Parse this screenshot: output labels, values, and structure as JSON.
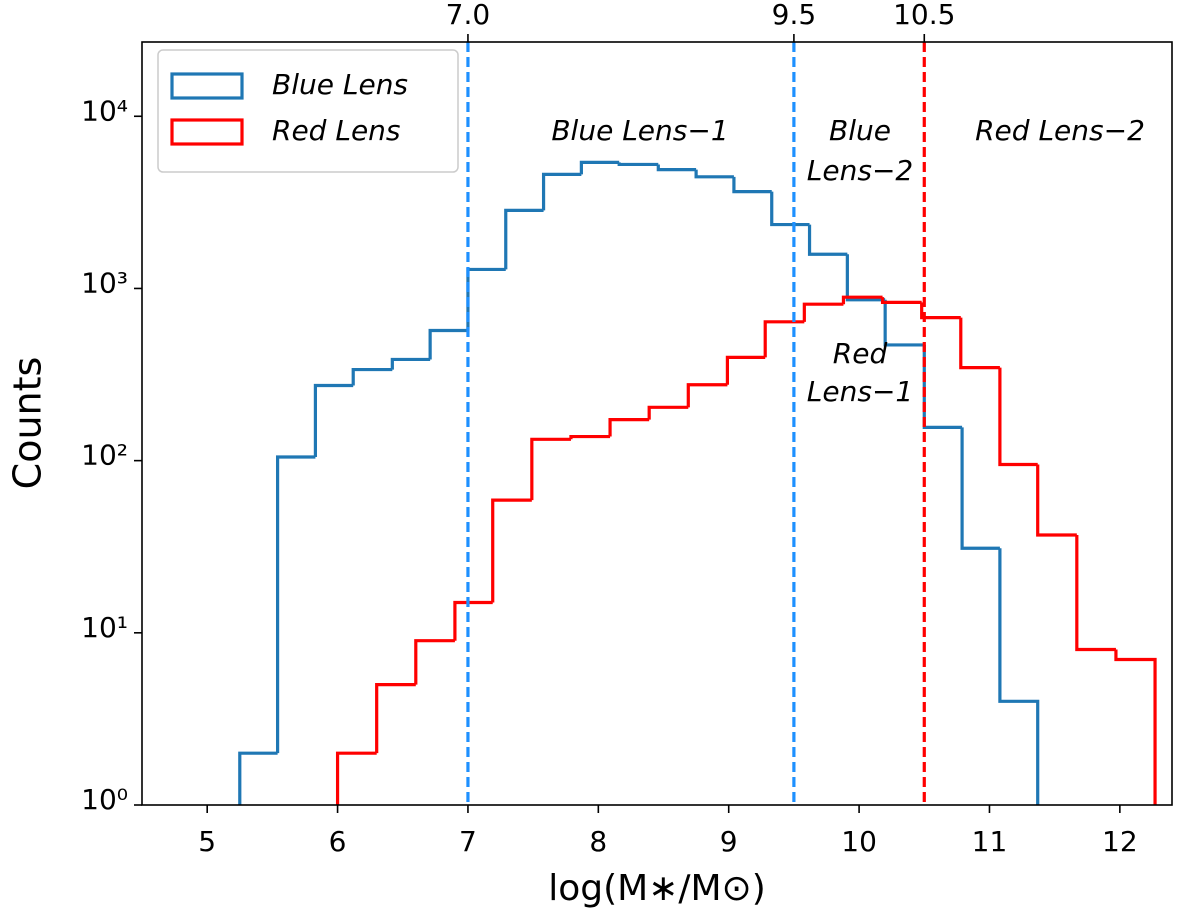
{
  "chart_data": {
    "type": "histogram",
    "xlabel": "log(M∗/M⊙)",
    "ylabel": "Counts",
    "log_y": true,
    "xlim": [
      4.5,
      12.4
    ],
    "ylim": [
      1,
      27000
    ],
    "xticks": [
      5,
      6,
      7,
      8,
      9,
      10,
      11,
      12
    ],
    "yticks": [
      {
        "value": 1,
        "label": "10⁰"
      },
      {
        "value": 10,
        "label": "10¹"
      },
      {
        "value": 100,
        "label": "10²"
      },
      {
        "value": 1000,
        "label": "10³"
      },
      {
        "value": 10000,
        "label": "10⁴"
      }
    ],
    "legend": "upper left",
    "series": [
      {
        "name": "Blue Lens",
        "color": "#1f77b4",
        "bins": [
          5.25,
          5.54,
          5.83,
          6.12,
          6.42,
          6.71,
          7.0,
          7.29,
          7.58,
          7.87,
          8.16,
          8.46,
          8.75,
          9.04,
          9.33,
          9.62,
          9.91,
          10.2,
          10.5,
          10.79,
          11.08,
          11.37
        ],
        "values": [
          2,
          105,
          273,
          338,
          387,
          570,
          1290,
          2840,
          4600,
          5400,
          5250,
          4900,
          4450,
          3650,
          2350,
          1580,
          860,
          470,
          156,
          31,
          4
        ]
      },
      {
        "name": "Red Lens",
        "color": "#ff0000",
        "bins": [
          6.0,
          6.3,
          6.6,
          6.9,
          7.19,
          7.49,
          7.79,
          8.09,
          8.39,
          8.69,
          8.99,
          9.28,
          9.58,
          9.88,
          10.18,
          10.48,
          10.78,
          11.08,
          11.37,
          11.67,
          11.97,
          12.27
        ],
        "values": [
          2,
          5,
          9,
          15,
          59,
          133,
          138,
          173,
          204,
          276,
          398,
          640,
          810,
          890,
          830,
          677,
          347,
          95,
          37,
          8,
          7
        ]
      }
    ],
    "vlines": [
      {
        "value": 7.0,
        "label": "7.0",
        "color": "#1e90ff"
      },
      {
        "value": 9.5,
        "label": "9.5",
        "color": "#1e90ff"
      },
      {
        "value": 10.5,
        "label": "10.5",
        "color": "#ff0000"
      }
    ],
    "annotations": [
      {
        "lines": [
          "Blue Lens−1"
        ],
        "color": "#1e90ff"
      },
      {
        "lines": [
          "Blue",
          "Lens−2"
        ],
        "color": "#1e90ff"
      },
      {
        "lines": [
          "Red Lens−2"
        ],
        "color": "#ff0000"
      },
      {
        "lines": [
          "Red",
          "Lens−1"
        ],
        "color": "#ff0000"
      }
    ]
  }
}
